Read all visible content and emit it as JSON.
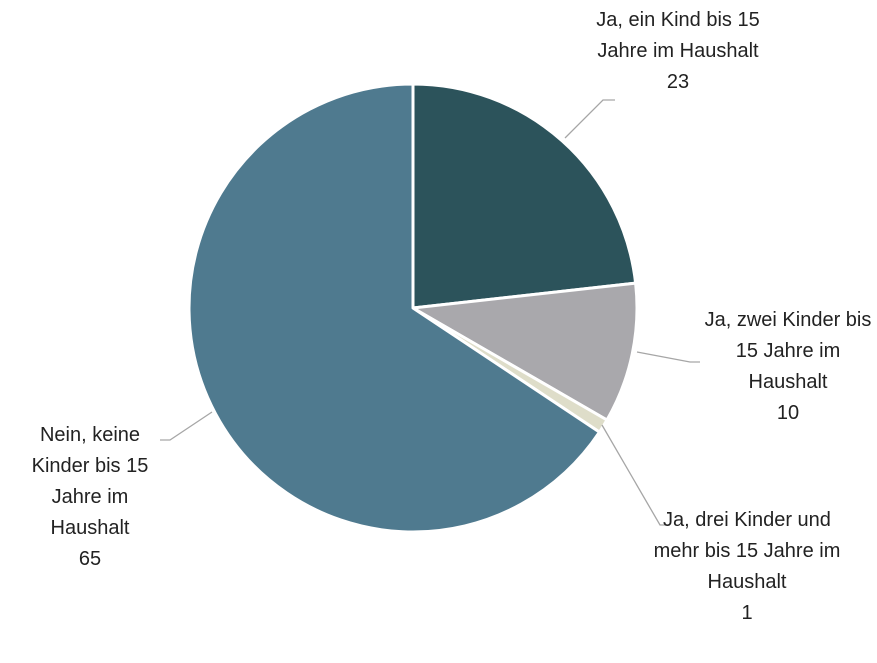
{
  "chart_data": {
    "type": "pie",
    "categories": [
      "Ja, ein Kind bis 15 Jahre im Haushalt",
      "Ja, zwei Kinder bis 15 Jahre im Haushalt",
      "Ja, drei Kinder und mehr bis 15 Jahre im Haushalt",
      "Nein, keine Kinder bis 15 Jahre im Haushalt"
    ],
    "values": [
      23,
      10,
      1,
      65
    ],
    "colors": [
      "#2c535b",
      "#a9a8ac",
      "#deddc9",
      "#4f7a8f"
    ]
  }
}
